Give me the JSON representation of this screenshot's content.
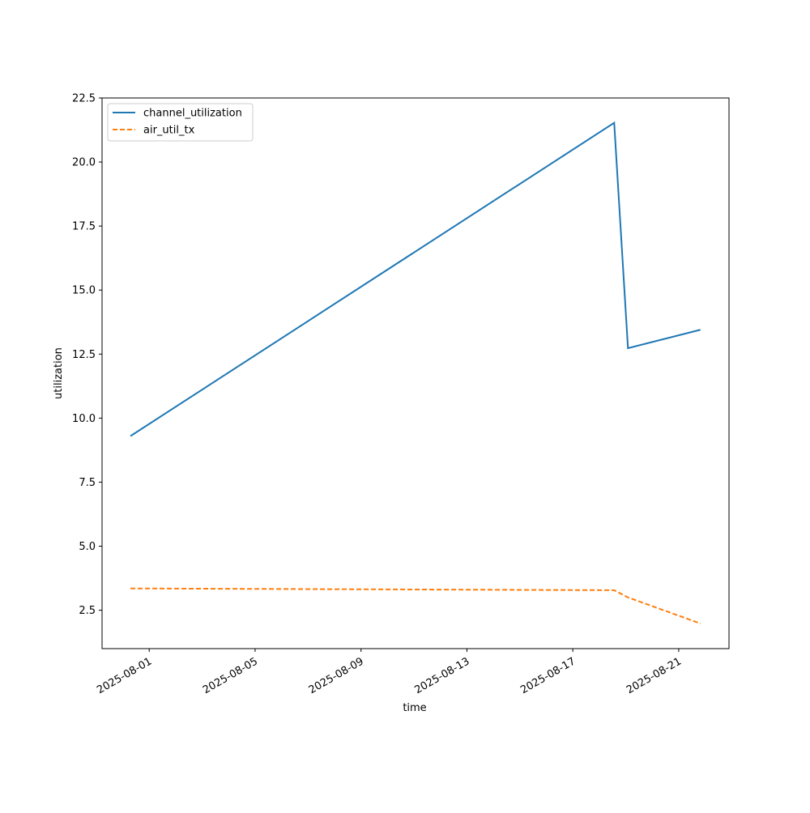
{
  "chart_data": {
    "type": "line",
    "xlabel": "time",
    "ylabel": "utilization",
    "x": [
      "2025-07-31T07:00",
      "2025-08-18T13:30",
      "2025-08-19T02:00",
      "2025-08-21T19:40"
    ],
    "series": [
      {
        "name": "channel_utilization",
        "color": "#1f77b4",
        "linestyle": "solid",
        "values": [
          9.3,
          21.53,
          12.73,
          13.45
        ]
      },
      {
        "name": "air_util_tx",
        "color": "#ff7f0e",
        "linestyle": "dashed",
        "values": [
          3.35,
          3.28,
          3.0,
          1.98
        ]
      }
    ],
    "xlim": [
      "2025-07-30T05:15",
      "2025-08-22T21:35"
    ],
    "xticks": [
      "2025-08-01",
      "2025-08-05",
      "2025-08-09",
      "2025-08-13",
      "2025-08-17",
      "2025-08-21"
    ],
    "ylim": [
      1.0,
      22.5
    ],
    "yticks": [
      2.5,
      {
        "value": 5,
        "label": "5.0"
      },
      7.5,
      {
        "value": 10,
        "label": "10.0"
      },
      12.5,
      {
        "value": 15,
        "label": "15.0"
      },
      17.5,
      {
        "value": 20,
        "label": "20.0"
      },
      22.5
    ],
    "legend": "upper-left",
    "grid": false
  }
}
